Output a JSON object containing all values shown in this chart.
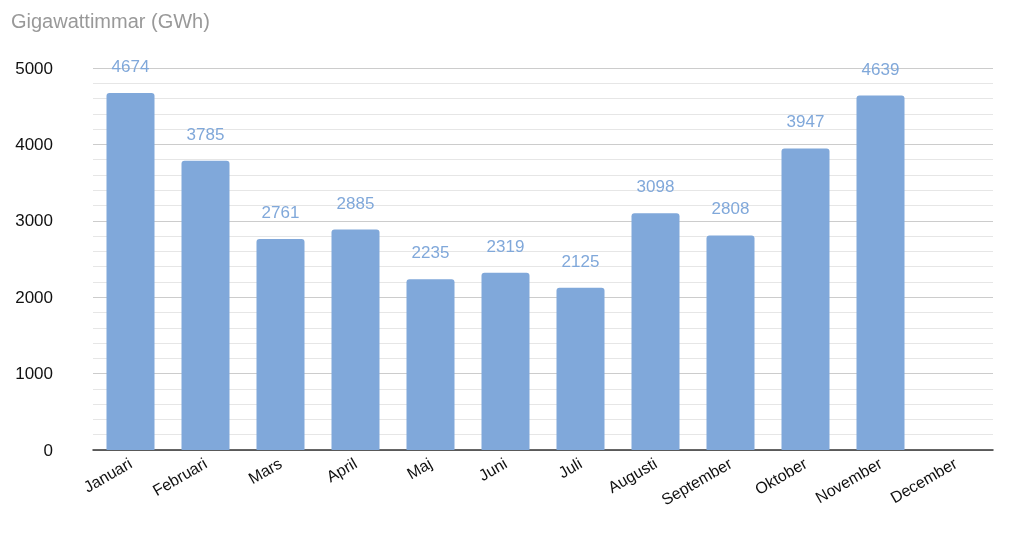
{
  "chart_data": {
    "type": "bar",
    "ylabel": "Gigawattimmar (GWh)",
    "categories": [
      "Januari",
      "Februari",
      "Mars",
      "April",
      "Maj",
      "Juni",
      "Juli",
      "Augusti",
      "September",
      "Oktober",
      "November",
      "December"
    ],
    "values": [
      4674,
      3785,
      2761,
      2885,
      2235,
      2319,
      2125,
      3098,
      2808,
      3947,
      4639,
      null
    ],
    "color": "#80a8da",
    "ylim": [
      0,
      5000
    ],
    "yticks": [
      0,
      {
        "value": 200,
        "label": null
      },
      {
        "value": 400,
        "label": null
      },
      {
        "value": 600,
        "label": null
      },
      {
        "value": 800,
        "label": null
      },
      1000,
      {
        "value": 1200,
        "label": null
      },
      {
        "value": 1400,
        "label": null
      },
      {
        "value": 1600,
        "label": null
      },
      {
        "value": 1800,
        "label": null
      },
      2000,
      {
        "value": 2200,
        "label": null
      },
      {
        "value": 2400,
        "label": null
      },
      {
        "value": 2600,
        "label": null
      },
      {
        "value": 2800,
        "label": null
      },
      3000,
      {
        "value": 3200,
        "label": null
      },
      {
        "value": 3400,
        "label": null
      },
      {
        "value": 3600,
        "label": null
      },
      {
        "value": 3800,
        "label": null
      },
      4000,
      {
        "value": 4200,
        "label": null
      },
      {
        "value": 4400,
        "label": null
      },
      {
        "value": 4600,
        "label": null
      },
      {
        "value": 4800,
        "label": null
      },
      5000
    ],
    "grid": "y",
    "data_labels": true
  }
}
